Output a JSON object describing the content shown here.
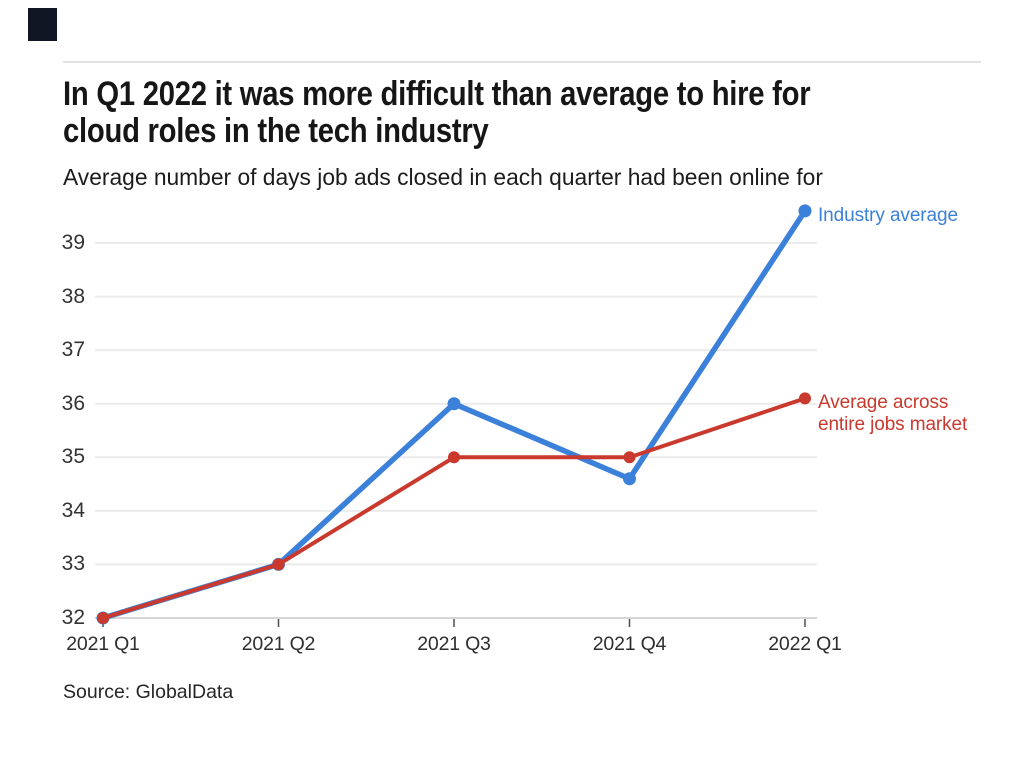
{
  "logo": {
    "color": "#101623"
  },
  "header": {
    "title_line1": "In Q1 2022 it was more difficult than average to hire for",
    "title_line2": "cloud roles in the tech industry",
    "subtitle": "Average number of days job ads closed in each quarter had been online for"
  },
  "chart_data": {
    "type": "line",
    "categories": [
      "2021 Q1",
      "2021 Q2",
      "2021 Q3",
      "2021 Q4",
      "2022 Q1"
    ],
    "series": [
      {
        "name": "Industry average",
        "label_lines": [
          "Industry average"
        ],
        "color": "#3B80D9",
        "values": [
          32,
          33,
          36,
          34.6,
          39.6
        ]
      },
      {
        "name": "Average across entire jobs market",
        "label_lines": [
          "Average across",
          "entire jobs market"
        ],
        "color": "#C9392D",
        "values": [
          32,
          33,
          35,
          35,
          36.1
        ]
      }
    ],
    "yticks": [
      32,
      33,
      34,
      35,
      36,
      37,
      38,
      39
    ],
    "ylim": [
      32,
      39.6
    ],
    "xlabel": "",
    "ylabel": "",
    "grid": true,
    "gridline_color": "#ebebeb",
    "axisline_color": "#d6d6d6",
    "tick_color": "#4d4d4d",
    "legend_position": "right-of-line-ends"
  },
  "source": {
    "text": "Source: GlobalData"
  }
}
